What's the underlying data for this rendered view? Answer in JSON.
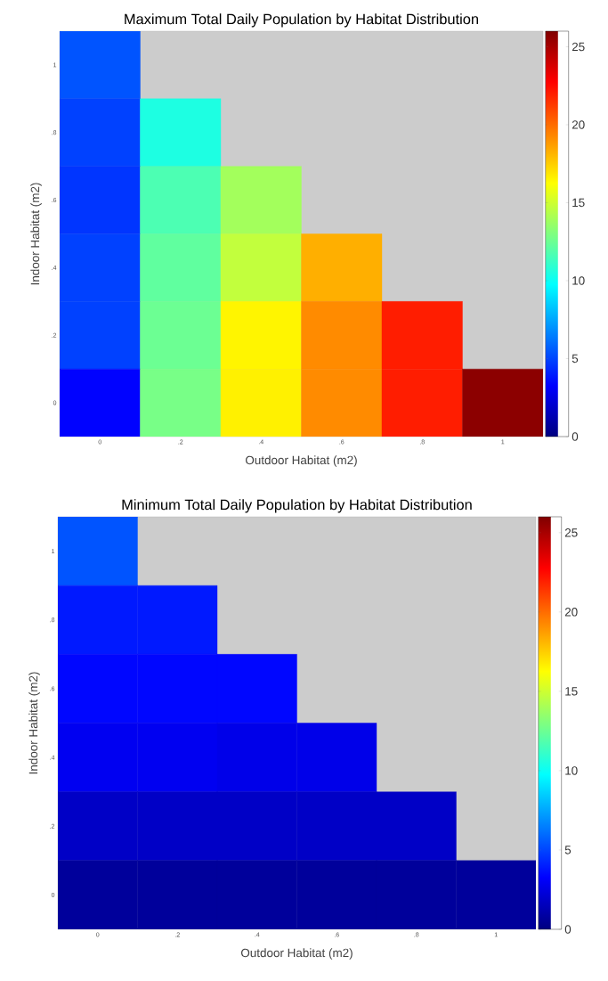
{
  "chart_data": [
    {
      "type": "heatmap",
      "title": "Maximum Total Daily Population by Habitat Distribution",
      "xlabel": "Outdoor Habitat (m2)",
      "ylabel": "Indoor Habitat (m2)",
      "categories": [
        "0",
        ".2",
        ".4",
        ".6",
        ".8",
        "1"
      ],
      "y_categories": [
        "1",
        ".8",
        ".6",
        ".4",
        ".2",
        "0"
      ],
      "cells": [
        [
          5.4,
          null,
          null,
          null,
          null,
          null
        ],
        [
          4.9,
          10.5,
          null,
          null,
          null,
          null
        ],
        [
          4.6,
          11.7,
          13.9,
          null,
          null,
          null
        ],
        [
          4.9,
          12.2,
          14.7,
          18.3,
          null,
          null
        ],
        [
          4.9,
          12.5,
          16.5,
          19.2,
          22,
          null
        ],
        [
          3.3,
          12.8,
          16.6,
          19.2,
          22,
          25.7
        ]
      ],
      "clim": [
        0,
        26
      ],
      "cticks": [
        0,
        5,
        10,
        15,
        20,
        25
      ]
    },
    {
      "type": "heatmap",
      "title": "Minimum Total Daily Population by Habitat Distribution",
      "xlabel": "Outdoor Habitat (m2)",
      "ylabel": "Indoor Habitat (m2)",
      "categories": [
        "0",
        ".2",
        ".4",
        ".6",
        ".8",
        "1"
      ],
      "y_categories": [
        "1",
        ".8",
        ".6",
        ".4",
        ".2",
        "0"
      ],
      "cells": [
        [
          5.4,
          null,
          null,
          null,
          null,
          null
        ],
        [
          3.9,
          3.9,
          null,
          null,
          null,
          null
        ],
        [
          3.4,
          3.4,
          3.4,
          null,
          null,
          null
        ],
        [
          2.9,
          2.9,
          2.7,
          2.7,
          null,
          null
        ],
        [
          1.8,
          1.8,
          1.8,
          1.8,
          1.8,
          null
        ],
        [
          0.7,
          0.7,
          0.7,
          0.7,
          0.7,
          0.7
        ]
      ],
      "clim": [
        0,
        26
      ],
      "cticks": [
        0,
        5,
        10,
        15,
        20,
        25
      ]
    }
  ]
}
